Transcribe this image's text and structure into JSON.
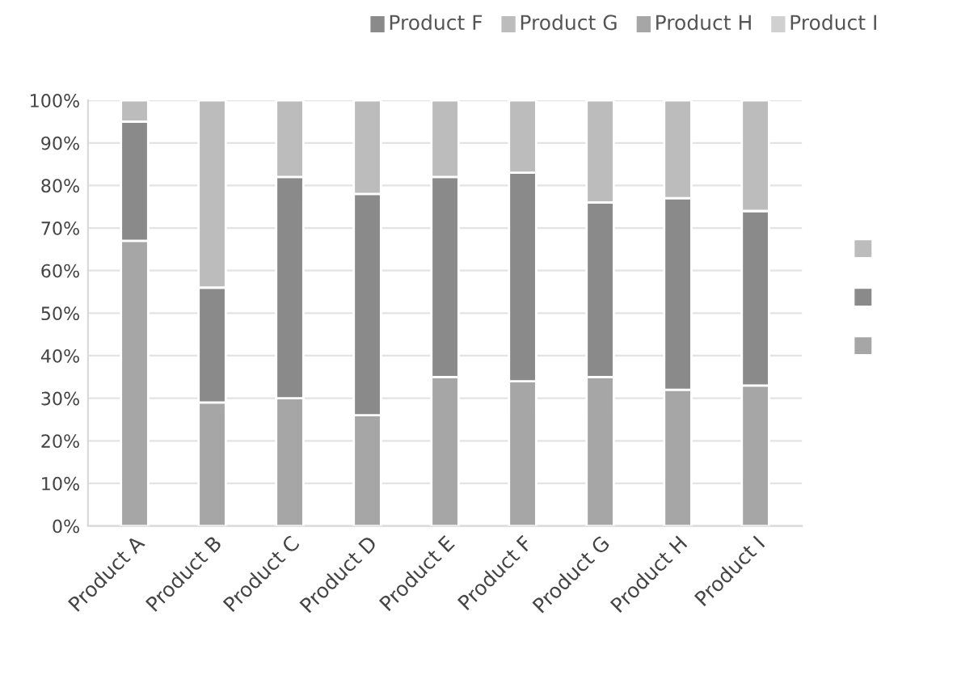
{
  "chart_data": {
    "type": "bar",
    "stacked": true,
    "categories": [
      "Product A",
      "Product B",
      "Product C",
      "Product D",
      "Product E",
      "Product F",
      "Product G",
      "Product H",
      "Product I"
    ],
    "series": [
      {
        "color": "#a6a6a6",
        "values": [
          67,
          29,
          30,
          26,
          35,
          34,
          35,
          32,
          33
        ]
      },
      {
        "color": "#8a8a8a",
        "values": [
          28,
          27,
          52,
          52,
          47,
          49,
          41,
          45,
          41
        ]
      },
      {
        "color": "#bcbcbc",
        "values": [
          5,
          44,
          18,
          22,
          18,
          17,
          24,
          23,
          26
        ]
      }
    ],
    "ylim": [
      0,
      100
    ],
    "yticks": [
      {
        "value": 0,
        "label": "0%"
      },
      {
        "value": 10,
        "label": "10%"
      },
      {
        "value": 20,
        "label": "20%"
      },
      {
        "value": 30,
        "label": "30%"
      },
      {
        "value": 40,
        "label": "40%"
      },
      {
        "value": 50,
        "label": "50%"
      },
      {
        "value": 60,
        "label": "60%"
      },
      {
        "value": 70,
        "label": "70%"
      },
      {
        "value": 80,
        "label": "80%"
      },
      {
        "value": 90,
        "label": "90%"
      },
      {
        "value": 100,
        "label": "100%"
      }
    ],
    "grid": "y",
    "annotations": [
      "Product F",
      "Product G",
      "Product H",
      "Product I"
    ]
  }
}
